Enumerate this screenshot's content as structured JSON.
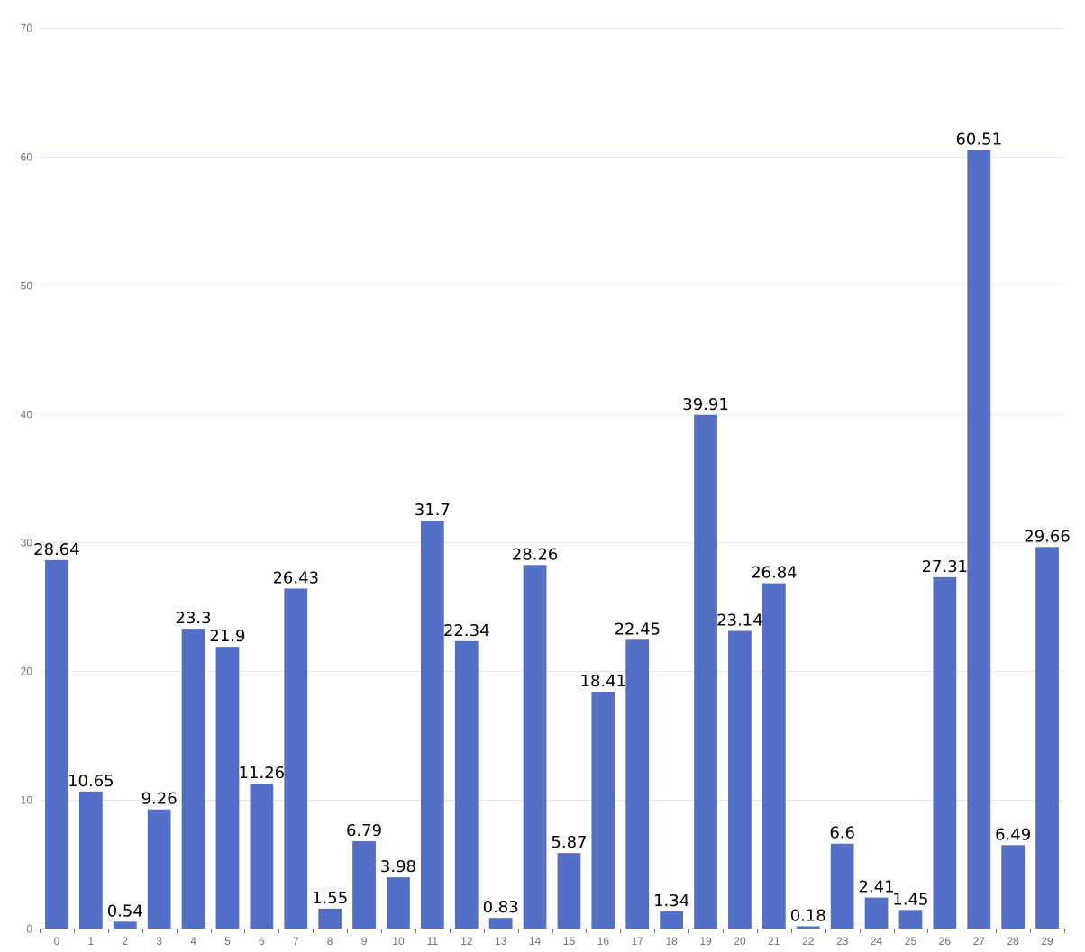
{
  "chart_data": {
    "type": "bar",
    "categories": [
      "0",
      "1",
      "2",
      "3",
      "4",
      "5",
      "6",
      "7",
      "8",
      "9",
      "10",
      "11",
      "12",
      "13",
      "14",
      "15",
      "16",
      "17",
      "18",
      "19",
      "20",
      "21",
      "22",
      "23",
      "24",
      "25",
      "26",
      "27",
      "28",
      "29"
    ],
    "values": [
      28.64,
      10.65,
      0.54,
      9.26,
      23.3,
      21.9,
      11.26,
      26.43,
      1.55,
      6.79,
      3.98,
      31.7,
      22.34,
      0.83,
      28.26,
      5.87,
      18.41,
      22.45,
      1.34,
      39.91,
      23.14,
      26.84,
      0.18,
      6.6,
      2.41,
      1.45,
      27.31,
      60.51,
      6.49,
      29.66
    ],
    "data_labels": [
      "28.64",
      "10.65",
      "0.54",
      "9.26",
      "23.3",
      "21.9",
      "11.26",
      "26.43",
      "1.55",
      "6.79",
      "3.98",
      "31.7",
      "22.34",
      "0.83",
      "28.26",
      "5.87",
      "18.41",
      "22.45",
      "1.34",
      "39.91",
      "23.14",
      "26.84",
      "0.18",
      "6.6",
      "2.41",
      "1.45",
      "27.31",
      "60.51",
      "6.49",
      "29.66"
    ],
    "y_ticks": [
      "0",
      "10",
      "20",
      "30",
      "40",
      "50",
      "60",
      "70"
    ],
    "ylim": [
      0,
      70
    ],
    "grid": true,
    "legend": false,
    "title": "",
    "xlabel": "",
    "ylabel": "",
    "bar_color": "#5470c6",
    "grid_color": "#e3e6f3",
    "axis_color": "#6e7079",
    "label_color": "#000000"
  }
}
